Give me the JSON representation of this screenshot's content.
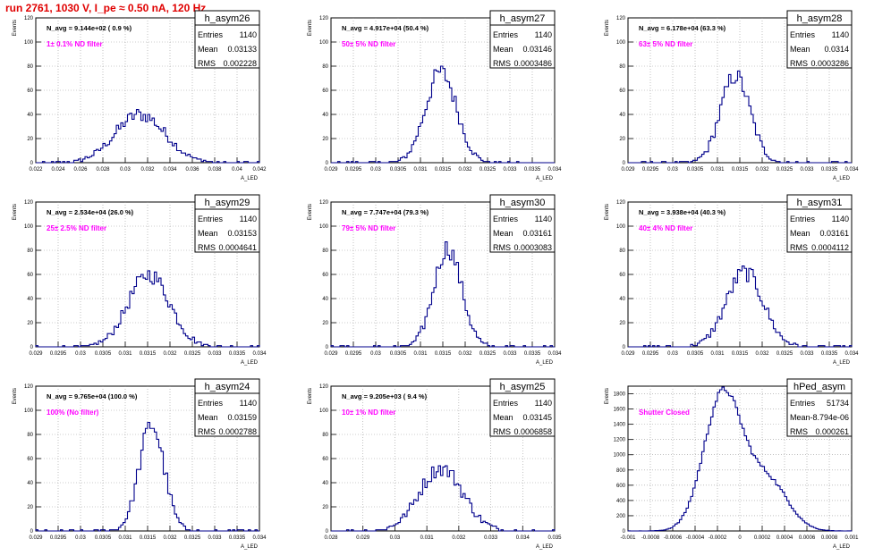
{
  "run_title": "run 2761,  1030 V, I_pe ≈ 0.50 nA, 120 Hz",
  "stat_labels": {
    "entries": "Entries",
    "mean": "Mean",
    "rms": "RMS"
  },
  "colors": {
    "histogram": "#00008b",
    "annotation": "#ff00ff",
    "title": "#e00000",
    "grid": "#999999"
  },
  "chart_data": [
    {
      "type": "histogram",
      "name": "h_asym26",
      "ylabel": "Events",
      "xlabel": "A_LED",
      "xlim": [
        0.022,
        0.042
      ],
      "ylim": [
        0,
        120
      ],
      "grid": true,
      "xticks": [
        "0.022",
        "0.024",
        "0.026",
        "0.028",
        "0.03",
        "0.032",
        "0.034",
        "0.036",
        "0.038",
        "0.04",
        "0.042"
      ],
      "yticks": [
        "0",
        "20",
        "40",
        "60",
        "80",
        "100",
        "120"
      ],
      "navg": "N_avg = 9.144e+02 ( 0.9 %)",
      "annotation": "1± 0.1% ND filter",
      "stats": {
        "entries": "1140",
        "mean": "0.03133",
        "rms": "0.002228"
      },
      "center": 0.03133,
      "sigma": 0.002228,
      "peak": 40,
      "nbins": 100
    },
    {
      "type": "histogram",
      "name": "h_asym27",
      "ylabel": "Events",
      "xlabel": "A_LED",
      "xlim": [
        0.029,
        0.034
      ],
      "ylim": [
        0,
        120
      ],
      "grid": true,
      "xticks": [
        "0.029",
        "0.0295",
        "0.03",
        "0.0305",
        "0.031",
        "0.0315",
        "0.032",
        "0.0325",
        "0.033",
        "0.0335",
        "0.034"
      ],
      "yticks": [
        "0",
        "20",
        "40",
        "60",
        "80",
        "100",
        "120"
      ],
      "navg": "N_avg = 4.917e+04 (50.4 %)",
      "annotation": "50± 5% ND filter",
      "stats": {
        "entries": "1140",
        "mean": "0.03146",
        "rms": "0.0003486"
      },
      "center": 0.03146,
      "sigma": 0.0003486,
      "peak": 75,
      "nbins": 100
    },
    {
      "type": "histogram",
      "name": "h_asym28",
      "ylabel": "Events",
      "xlabel": "A_LED",
      "xlim": [
        0.029,
        0.034
      ],
      "ylim": [
        0,
        120
      ],
      "grid": true,
      "xticks": [
        "0.029",
        "0.0295",
        "0.03",
        "0.0305",
        "0.031",
        "0.0315",
        "0.032",
        "0.0325",
        "0.033",
        "0.0335",
        "0.034"
      ],
      "yticks": [
        "0",
        "20",
        "40",
        "60",
        "80",
        "100",
        "120"
      ],
      "navg": "N_avg = 6.178e+04 (63.3 %)",
      "annotation": "63± 5% ND filter",
      "stats": {
        "entries": "1140",
        "mean": "0.0314",
        "rms": "0.0003286"
      },
      "center": 0.0314,
      "sigma": 0.0003286,
      "peak": 72,
      "nbins": 100
    },
    {
      "type": "histogram",
      "name": "h_asym29",
      "ylabel": "Events",
      "xlabel": "A_LED",
      "xlim": [
        0.029,
        0.034
      ],
      "ylim": [
        0,
        120
      ],
      "grid": true,
      "xticks": [
        "0.029",
        "0.0295",
        "0.03",
        "0.0305",
        "0.031",
        "0.0315",
        "0.032",
        "0.0325",
        "0.033",
        "0.0335",
        "0.034"
      ],
      "yticks": [
        "0",
        "20",
        "40",
        "60",
        "80",
        "100",
        "120"
      ],
      "navg": "N_avg = 2.534e+04 (26.0 %)",
      "annotation": "25± 2.5% ND filter",
      "stats": {
        "entries": "1140",
        "mean": "0.03153",
        "rms": "0.0004641"
      },
      "center": 0.03153,
      "sigma": 0.0004641,
      "peak": 60,
      "nbins": 100
    },
    {
      "type": "histogram",
      "name": "h_asym30",
      "ylabel": "Events",
      "xlabel": "A_LED",
      "xlim": [
        0.029,
        0.034
      ],
      "ylim": [
        0,
        120
      ],
      "grid": true,
      "xticks": [
        "0.029",
        "0.0295",
        "0.03",
        "0.0305",
        "0.031",
        "0.0315",
        "0.032",
        "0.0325",
        "0.033",
        "0.0335",
        "0.034"
      ],
      "yticks": [
        "0",
        "20",
        "40",
        "60",
        "80",
        "100",
        "120"
      ],
      "navg": "N_avg = 7.747e+04 (79.3 %)",
      "annotation": "79± 5% ND filter",
      "stats": {
        "entries": "1140",
        "mean": "0.03161",
        "rms": "0.0003083"
      },
      "center": 0.03161,
      "sigma": 0.0003083,
      "peak": 82,
      "nbins": 100
    },
    {
      "type": "histogram",
      "name": "h_asym31",
      "ylabel": "Events",
      "xlabel": "A_LED",
      "xlim": [
        0.029,
        0.034
      ],
      "ylim": [
        0,
        120
      ],
      "grid": true,
      "xticks": [
        "0.029",
        "0.0295",
        "0.03",
        "0.0305",
        "0.031",
        "0.0315",
        "0.032",
        "0.0325",
        "0.033",
        "0.0335",
        "0.034"
      ],
      "yticks": [
        "0",
        "20",
        "40",
        "60",
        "80",
        "100",
        "120"
      ],
      "navg": "N_avg = 3.938e+04 (40.3 %)",
      "annotation": "40± 4% ND filter",
      "stats": {
        "entries": "1140",
        "mean": "0.03161",
        "rms": "0.0004112"
      },
      "center": 0.03161,
      "sigma": 0.0004112,
      "peak": 62,
      "nbins": 100
    },
    {
      "type": "histogram",
      "name": "h_asym24",
      "ylabel": "Events",
      "xlabel": "A_LED",
      "xlim": [
        0.029,
        0.034
      ],
      "ylim": [
        0,
        120
      ],
      "grid": true,
      "xticks": [
        "0.029",
        "0.0295",
        "0.03",
        "0.0305",
        "0.031",
        "0.0315",
        "0.032",
        "0.0325",
        "0.033",
        "0.0335",
        "0.034"
      ],
      "yticks": [
        "0",
        "20",
        "40",
        "60",
        "80",
        "100",
        "120"
      ],
      "navg": "N_avg = 9.765e+04 (100.0 %)",
      "annotation": "100% (No filter)",
      "stats": {
        "entries": "1140",
        "mean": "0.03159",
        "rms": "0.0002788"
      },
      "center": 0.03159,
      "sigma": 0.0002788,
      "peak": 88,
      "nbins": 100
    },
    {
      "type": "histogram",
      "name": "h_asym25",
      "ylabel": "Events",
      "xlabel": "A_LED",
      "xlim": [
        0.028,
        0.035
      ],
      "ylim": [
        0,
        120
      ],
      "grid": true,
      "xticks": [
        "0.028",
        "0.029",
        "0.03",
        "0.031",
        "0.032",
        "0.033",
        "0.034",
        "0.035"
      ],
      "yticks": [
        "0",
        "20",
        "40",
        "60",
        "80",
        "100",
        "120"
      ],
      "navg": "N_avg = 9.205e+03 ( 9.4 %)",
      "annotation": "10± 1% ND filter",
      "stats": {
        "entries": "1140",
        "mean": "0.03145",
        "rms": "0.0006858"
      },
      "center": 0.03145,
      "sigma": 0.0006858,
      "peak": 52,
      "nbins": 100
    },
    {
      "type": "histogram",
      "name": "hPed_asym",
      "ylabel": "Events",
      "xlabel": "A_LED",
      "xlim": [
        -0.001,
        0.001
      ],
      "ylim": [
        0,
        1900
      ],
      "grid": true,
      "xticks": [
        "-0.001",
        "-0.0008",
        "-0.0006",
        "-0.0004",
        "-0.0002",
        "0",
        "0.0002",
        "0.0004",
        "0.0006",
        "0.0008",
        "0.001"
      ],
      "yticks": [
        "0",
        "200",
        "400",
        "600",
        "800",
        "1000",
        "1200",
        "1400",
        "1600",
        "1800"
      ],
      "navg": "",
      "annotation": "Shutter Closed",
      "stats": {
        "entries": "51734",
        "mean": "-8.794e-06",
        "rms": "0.000261"
      },
      "center": -0.00015,
      "sigma": 0.00017,
      "peak": 1800,
      "nbins": 100,
      "shoulder": {
        "center": 0.00025,
        "sigma": 0.00018,
        "peak": 650
      }
    }
  ]
}
